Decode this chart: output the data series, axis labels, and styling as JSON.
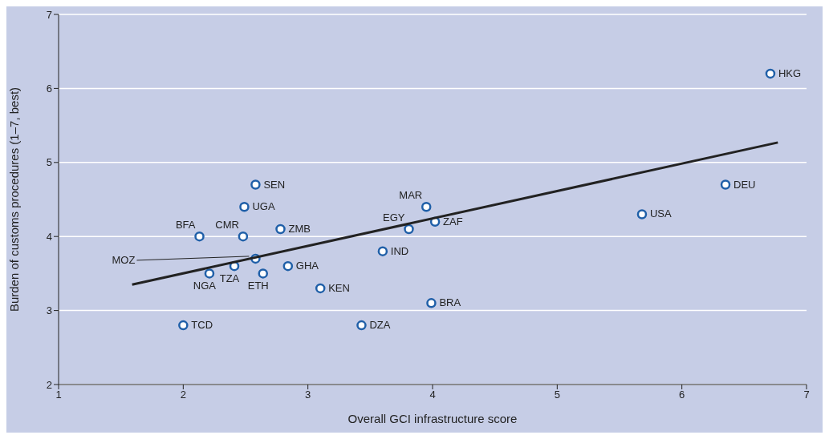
{
  "chart_data": {
    "type": "scatter",
    "xlabel": "Overall GCI infrastructure score",
    "ylabel": "Burden of customs procedures (1–7, best)",
    "xlim": [
      1,
      7
    ],
    "xticks": [
      1,
      2,
      3,
      4,
      5,
      6,
      7
    ],
    "ylim": [
      2,
      7
    ],
    "yticks": [
      2,
      3,
      4,
      5,
      6,
      7
    ],
    "grid": "y",
    "marker": "circle",
    "series": [
      {
        "color": "#1f5fa8",
        "x": [
          6.71,
          6.35,
          5.68,
          3.99,
          4.02,
          3.95,
          3.81,
          3.6,
          3.43,
          3.1,
          2.84,
          2.78,
          2.58,
          2.49,
          2.48,
          2.58,
          2.41,
          2.64,
          2.21,
          2.13,
          2.0
        ],
        "values": [
          6.2,
          4.7,
          4.3,
          3.1,
          4.2,
          4.4,
          4.1,
          3.8,
          2.8,
          3.3,
          3.6,
          4.1,
          4.7,
          4.4,
          4.0,
          3.7,
          3.6,
          3.5,
          3.5,
          4.0,
          2.8
        ],
        "value_labels": [
          "HKG",
          "DEU",
          "USA",
          "BRA",
          "ZAF",
          "MAR",
          "EGY",
          "IND",
          "DZA",
          "KEN",
          "GHA",
          "ZMB",
          "SEN",
          "UGA",
          "CMR",
          "MOZ",
          "TZA",
          "ETH",
          "NGA",
          "BFA",
          "TCD"
        ]
      },
      {
        "type": "line",
        "marker": "none",
        "color": "#222222",
        "x": [
          1.59,
          6.77
        ],
        "values": [
          3.35,
          5.27
        ]
      }
    ]
  }
}
